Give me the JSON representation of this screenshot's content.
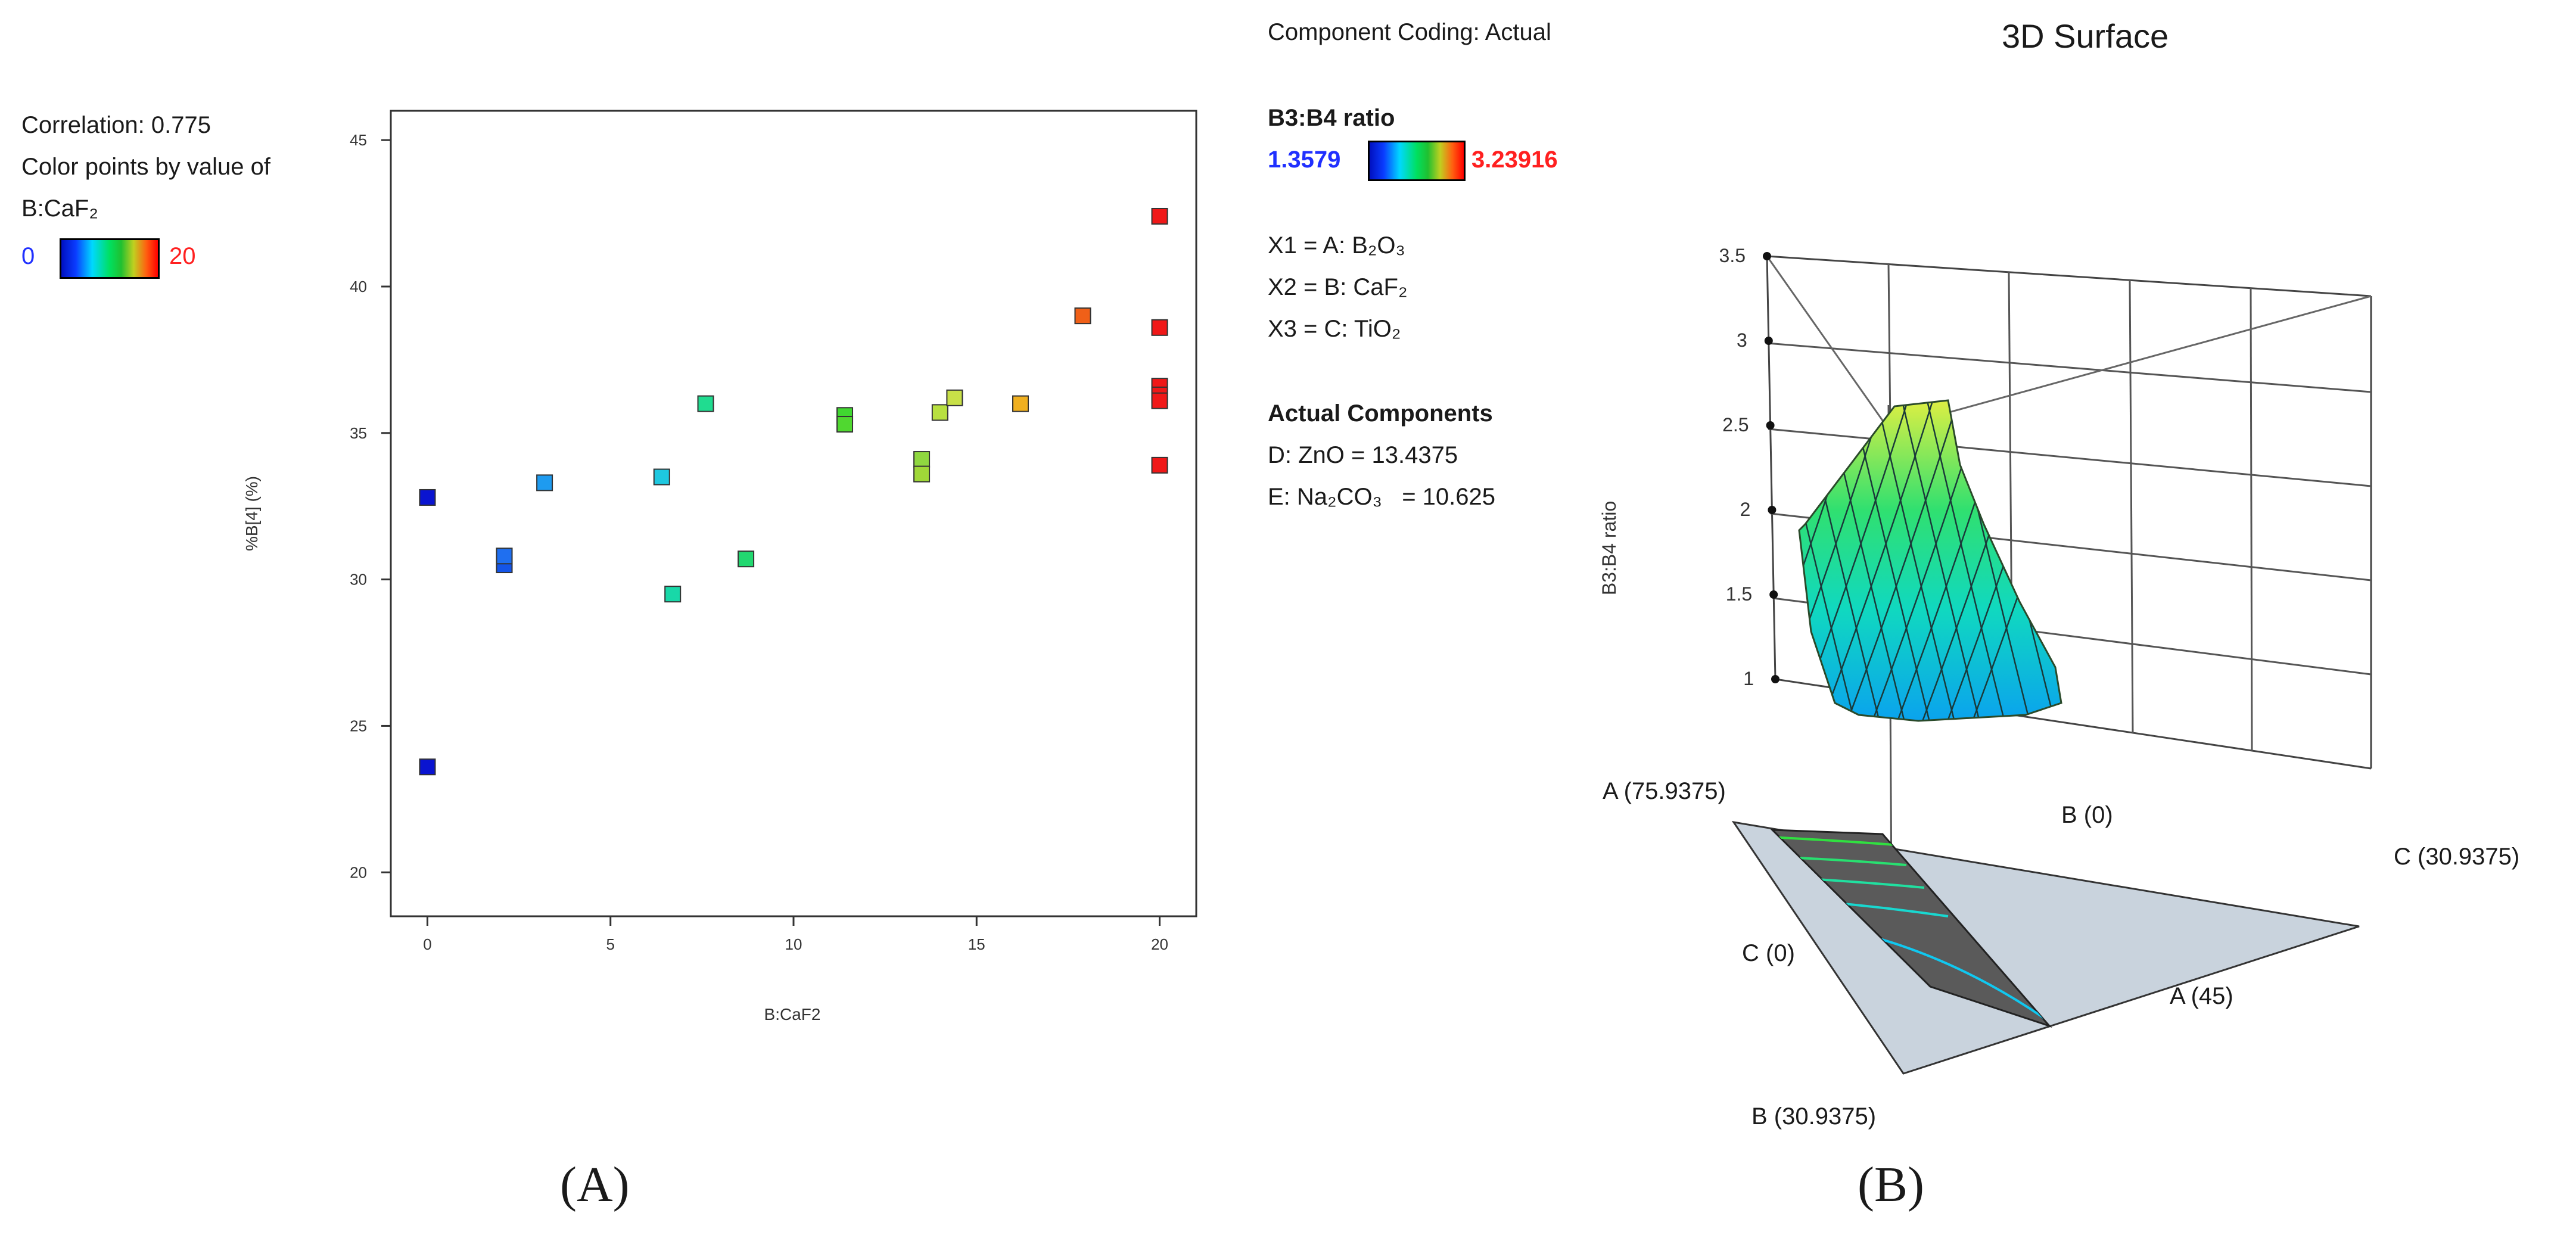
{
  "panel_a": {
    "label": "(A)",
    "correlation": "Correlation: 0.775",
    "color_by": "Color points by value of",
    "color_var": "B:CaF₂",
    "legend_min": "0",
    "legend_max": "20"
  },
  "panel_b": {
    "label": "(B)",
    "coding": "Component Coding: Actual",
    "title": "3D Surface",
    "legend_title": "B3:B4 ratio",
    "legend_min": "1.3579",
    "legend_max": "3.23916",
    "x1": "X1 = A: B₂O₃",
    "x2": "X2 = B: CaF₂",
    "x3": "X3 = C: TiO₂",
    "actual_title": "Actual Components",
    "d_comp": "D: ZnO = 13.4375",
    "e_comp": "E: Na₂CO₃   = 10.625",
    "zlabel": "B3:B4 ratio",
    "ticks": [
      "1",
      "1.5",
      "2",
      "2.5",
      "3",
      "3.5"
    ],
    "vertex_a_top": "A (75.9375)",
    "vertex_b_top": "B (0)",
    "vertex_c_right": "C (30.9375)",
    "vertex_c_left": "C (0)",
    "vertex_a_right": "A (45)",
    "vertex_b_bottom": "B (30.9375)"
  },
  "chart_data": [
    {
      "type": "scatter",
      "xlabel": "B:CaF2",
      "ylabel": "%B[4] (%)",
      "xlim": [
        -1,
        21
      ],
      "ylim": [
        18.5,
        46
      ],
      "xticks": [
        0,
        5,
        10,
        15,
        20
      ],
      "yticks": [
        20,
        25,
        30,
        35,
        40,
        45
      ],
      "points": [
        {
          "x": 0,
          "y": 32.8,
          "color": "#0a14d0"
        },
        {
          "x": 0,
          "y": 23.6,
          "color": "#0a14d0"
        },
        {
          "x": 2.1,
          "y": 30.5,
          "color": "#1455e8"
        },
        {
          "x": 2.1,
          "y": 30.8,
          "color": "#1f6ff0"
        },
        {
          "x": 3.2,
          "y": 33.3,
          "color": "#1e9bf0"
        },
        {
          "x": 6.4,
          "y": 33.5,
          "color": "#1ec8e0"
        },
        {
          "x": 6.7,
          "y": 29.5,
          "color": "#18d8a8"
        },
        {
          "x": 7.6,
          "y": 36.0,
          "color": "#20dc90"
        },
        {
          "x": 8.7,
          "y": 30.7,
          "color": "#22d870"
        },
        {
          "x": 11.4,
          "y": 35.6,
          "color": "#40d830"
        },
        {
          "x": 11.4,
          "y": 35.3,
          "color": "#50d830"
        },
        {
          "x": 13.5,
          "y": 34.1,
          "color": "#90d840"
        },
        {
          "x": 13.5,
          "y": 33.6,
          "color": "#a0d838"
        },
        {
          "x": 14.0,
          "y": 35.7,
          "color": "#b8e040"
        },
        {
          "x": 14.4,
          "y": 36.2,
          "color": "#c8e048"
        },
        {
          "x": 16.2,
          "y": 36.0,
          "color": "#f0b020"
        },
        {
          "x": 17.9,
          "y": 39.0,
          "color": "#f06018"
        },
        {
          "x": 20,
          "y": 42.4,
          "color": "#f01818"
        },
        {
          "x": 20,
          "y": 38.6,
          "color": "#f01818"
        },
        {
          "x": 20,
          "y": 36.6,
          "color": "#f01818"
        },
        {
          "x": 20,
          "y": 36.3,
          "color": "#f01818"
        },
        {
          "x": 20,
          "y": 36.1,
          "color": "#f01818"
        },
        {
          "x": 20,
          "y": 33.9,
          "color": "#f01818"
        }
      ]
    },
    {
      "type": "surface",
      "title": "3D Surface",
      "zlabel": "B3:B4 ratio",
      "zlim": [
        1,
        3.5
      ],
      "zticks": [
        1,
        1.5,
        2,
        2.5,
        3,
        3.5
      ],
      "color_range": [
        1.3579,
        3.23916
      ]
    }
  ]
}
